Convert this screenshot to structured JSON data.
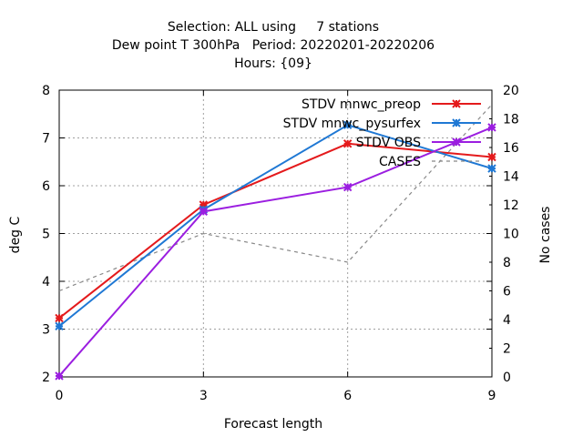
{
  "chart_data": {
    "type": "line",
    "title_lines": [
      "Selection: ALL using     7 stations",
      "Dew point T 300hPa   Period: 20220201-20220206",
      "Hours: {09}"
    ],
    "xlabel": "Forecast length",
    "ylabel": "deg C",
    "y2label": "No cases",
    "x": [
      0,
      3,
      6,
      9
    ],
    "xlim": [
      0,
      9
    ],
    "ylim": [
      2,
      8
    ],
    "y2lim": [
      0,
      20
    ],
    "xticks": [
      "0",
      "3",
      "6",
      "9"
    ],
    "yticks": [
      "2",
      "3",
      "4",
      "5",
      "6",
      "7",
      "8"
    ],
    "y2ticks": [
      "0",
      "2",
      "4",
      "6",
      "8",
      "10",
      "12",
      "14",
      "16",
      "18",
      "20"
    ],
    "grid": true,
    "legend_position": "top-right",
    "series": [
      {
        "name": "STDV mnwc_preop",
        "axis": "y1",
        "color": "#e41a1c",
        "style": "line-points",
        "values": [
          3.23,
          5.6,
          6.88,
          6.6
        ]
      },
      {
        "name": "STDV mnwc_pysurfex",
        "axis": "y1",
        "color": "#1f78d4",
        "style": "line-points",
        "values": [
          3.06,
          5.5,
          7.27,
          6.36
        ]
      },
      {
        "name": "STDV OBS",
        "axis": "y1",
        "color": "#9b1ee0",
        "style": "line-points",
        "values": [
          2.02,
          5.46,
          5.97,
          7.22
        ]
      },
      {
        "name": "CASES",
        "axis": "y2",
        "color": "#888888",
        "style": "dashed",
        "values": [
          6,
          10,
          8,
          19
        ]
      }
    ]
  }
}
